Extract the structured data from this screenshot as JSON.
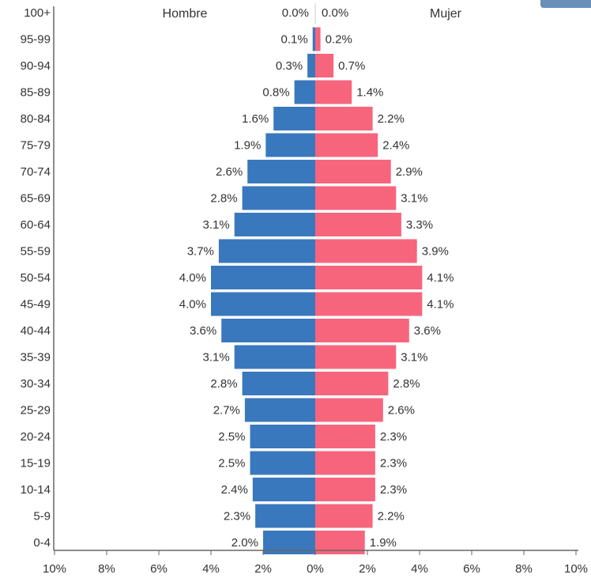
{
  "chart_data": {
    "type": "bar",
    "orientation": "horizontal-diverging",
    "categories": [
      "100+",
      "95-99",
      "90-94",
      "85-89",
      "80-84",
      "75-79",
      "70-74",
      "65-69",
      "60-64",
      "55-59",
      "50-54",
      "45-49",
      "40-44",
      "35-39",
      "30-34",
      "25-29",
      "20-24",
      "15-19",
      "10-14",
      "5-9",
      "0-4"
    ],
    "series": [
      {
        "name": "Hombre",
        "side": "left",
        "color": "#3a78bd",
        "values": [
          0.0,
          0.1,
          0.3,
          0.8,
          1.6,
          1.9,
          2.6,
          2.8,
          3.1,
          3.7,
          4.0,
          4.0,
          3.6,
          3.1,
          2.8,
          2.7,
          2.5,
          2.5,
          2.4,
          2.3,
          2.0
        ],
        "labels": [
          "0.0%",
          "0.1%",
          "0.3%",
          "0.8%",
          "1.6%",
          "1.9%",
          "2.6%",
          "2.8%",
          "3.1%",
          "3.7%",
          "4.0%",
          "4.0%",
          "3.6%",
          "3.1%",
          "2.8%",
          "2.7%",
          "2.5%",
          "2.5%",
          "2.4%",
          "2.3%",
          "2.0%"
        ]
      },
      {
        "name": "Mujer",
        "side": "right",
        "color": "#f7657d",
        "values": [
          0.0,
          0.2,
          0.7,
          1.4,
          2.2,
          2.4,
          2.9,
          3.1,
          3.3,
          3.9,
          4.1,
          4.1,
          3.6,
          3.1,
          2.8,
          2.6,
          2.3,
          2.3,
          2.3,
          2.2,
          1.9
        ],
        "labels": [
          "0.0%",
          "0.2%",
          "0.7%",
          "1.4%",
          "2.2%",
          "2.4%",
          "2.9%",
          "3.1%",
          "3.3%",
          "3.9%",
          "4.1%",
          "4.1%",
          "3.6%",
          "3.1%",
          "2.8%",
          "2.6%",
          "2.3%",
          "2.3%",
          "2.3%",
          "2.2%",
          "1.9%"
        ]
      }
    ],
    "x_ticks": [
      "10%",
      "8%",
      "6%",
      "4%",
      "2%",
      "0%",
      "2%",
      "4%",
      "6%",
      "8%",
      "10%"
    ],
    "xlim": [
      -10,
      10
    ],
    "grid": false
  }
}
